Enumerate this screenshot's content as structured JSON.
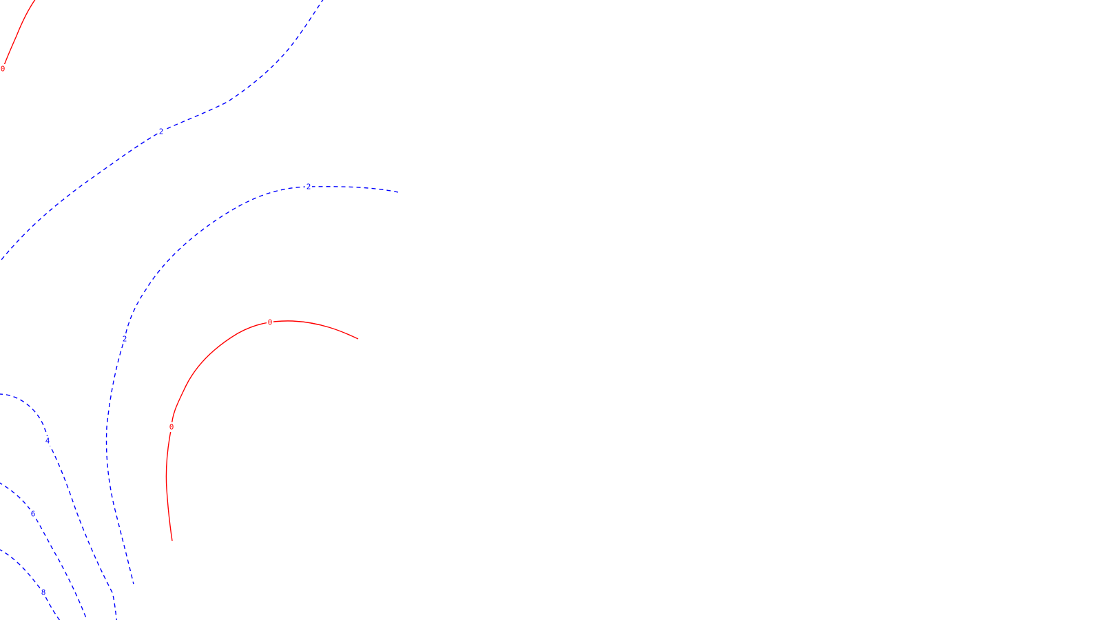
{
  "chart_data": {
    "type": "contour",
    "title": "",
    "xlabel": "",
    "ylabel": "",
    "grid": false,
    "legend": "none",
    "colors": {
      "zero": "#ff0000",
      "positive": "#0000ff",
      "background": "#ffffff"
    },
    "line_styles": {
      "zero": "solid",
      "positive": "dashed"
    },
    "levels": [
      {
        "id": "zero-top-left",
        "value": 0,
        "label": "0",
        "color": "#ff0000",
        "style": "solid"
      },
      {
        "id": "two-outer",
        "value": 2,
        "label": "2",
        "color": "#0000ff",
        "style": "dashed"
      },
      {
        "id": "two-inner",
        "value": 2,
        "label": "2",
        "color": "#0000ff",
        "style": "dashed"
      },
      {
        "id": "zero-arc",
        "value": 0,
        "label": "0",
        "color": "#ff0000",
        "style": "solid"
      },
      {
        "id": "four",
        "value": 4,
        "label": "4",
        "color": "#0000ff",
        "style": "dashed"
      },
      {
        "id": "six",
        "value": 6,
        "label": "6",
        "color": "#0000ff",
        "style": "dashed"
      },
      {
        "id": "eight",
        "value": 8,
        "label": "8",
        "color": "#0000ff",
        "style": "dashed"
      }
    ]
  }
}
